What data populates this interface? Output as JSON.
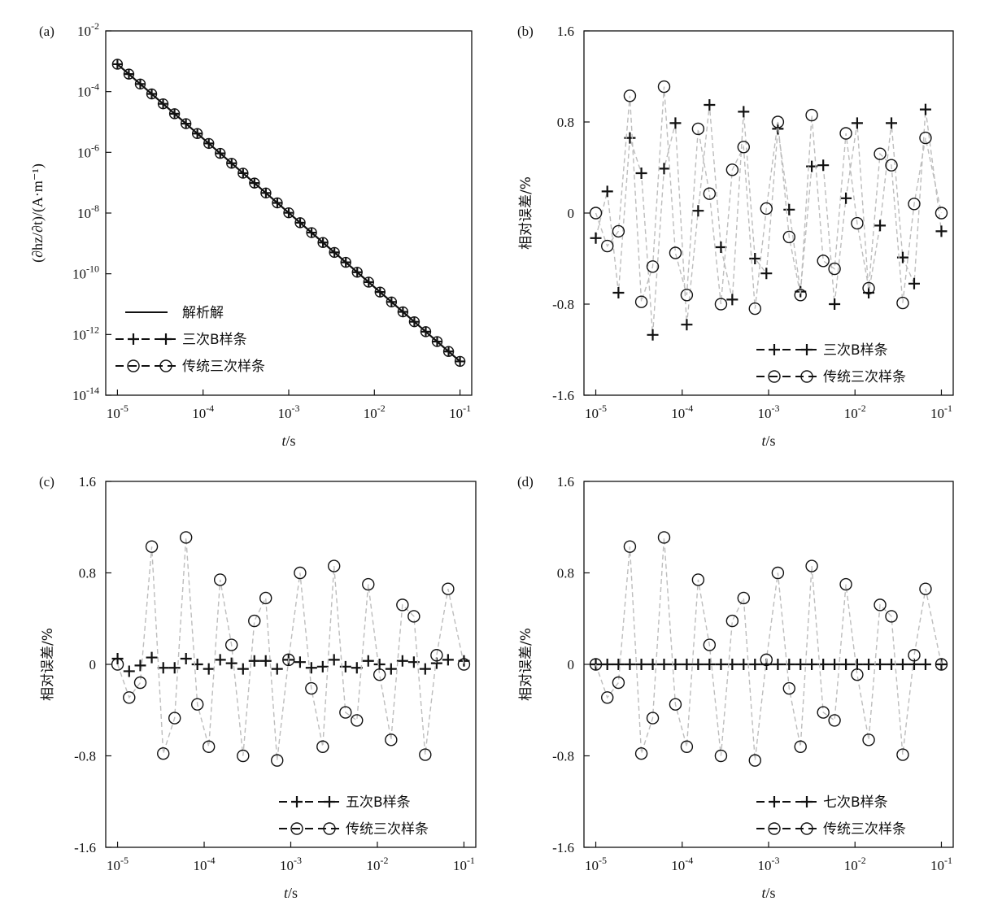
{
  "chart_data": [
    {
      "panel": "(a)",
      "type": "line",
      "xscale": "log",
      "yscale": "log",
      "xlim": [
        1e-05,
        0.1
      ],
      "ylim": [
        1e-14,
        0.01
      ],
      "xlabel_italic": "t",
      "xlabel_unit": "/s",
      "ylabel": "(∂hz/∂t)/(A·m⁻¹)",
      "xticks": [
        "10-5",
        "10-4",
        "10-3",
        "10-2",
        "10-1"
      ],
      "yticks": [
        "10-2",
        "10-4",
        "10-6",
        "10-8",
        "10-10",
        "10-12",
        "10-14"
      ],
      "legend_position": "bottom-left",
      "series": [
        {
          "name": "解析解",
          "style": "solid-line",
          "x_range": [
            1e-05,
            0.1
          ],
          "y_range": [
            0.0008,
            1.3e-13
          ]
        },
        {
          "name": "三次B样条",
          "style": "plus-markers",
          "x_range": [
            1e-05,
            0.1
          ],
          "y_range": [
            0.0008,
            1.3e-13
          ],
          "points": 31
        },
        {
          "name": "传统三次样条",
          "style": "circle-markers",
          "x_range": [
            1e-05,
            0.1
          ],
          "y_range": [
            0.0008,
            1.3e-13
          ],
          "points": 31
        }
      ]
    },
    {
      "panel": "(b)",
      "type": "scatter",
      "xscale": "log",
      "xlim": [
        1e-05,
        0.1
      ],
      "ylim": [
        -1.6,
        1.6
      ],
      "xlabel_italic": "t",
      "xlabel_unit": "/s",
      "ylabel": "相对误差/%",
      "xticks": [
        "10-5",
        "10-4",
        "10-3",
        "10-2",
        "10-1"
      ],
      "yticks": [
        "1.6",
        "0.8",
        "0",
        "-0.8",
        "-1.6"
      ],
      "legend_position": "bottom-right",
      "series": [
        {
          "name": "三次B样条",
          "style": "plus-markers",
          "x": [
            1e-05,
            1.36e-05,
            1.83e-05,
            2.48e-05,
            3.37e-05,
            4.56e-05,
            6.17e-05,
            8.35e-05,
            0.000113,
            0.000153,
            0.000207,
            0.000281,
            0.00038,
            0.000514,
            0.000696,
            0.000943,
            0.00128,
            0.00173,
            0.00234,
            0.00316,
            0.00429,
            0.0058,
            0.00785,
            0.0106,
            0.0144,
            0.0195,
            0.0264,
            0.0357,
            0.0484,
            0.0655,
            0.1
          ],
          "y": [
            -0.22,
            0.19,
            -0.7,
            0.66,
            0.35,
            -1.07,
            0.39,
            0.79,
            -0.98,
            0.02,
            0.95,
            -0.3,
            -0.76,
            0.89,
            -0.4,
            -0.53,
            0.74,
            0.03,
            -0.69,
            0.41,
            0.42,
            -0.8,
            0.13,
            0.79,
            -0.7,
            -0.11,
            0.79,
            -0.39,
            -0.62,
            0.91,
            -0.16
          ]
        },
        {
          "name": "传统三次样条",
          "style": "circle-markers",
          "x": [
            1e-05,
            1.36e-05,
            1.83e-05,
            2.48e-05,
            3.37e-05,
            4.56e-05,
            6.17e-05,
            8.35e-05,
            0.000113,
            0.000153,
            0.000207,
            0.000281,
            0.00038,
            0.000514,
            0.000696,
            0.000943,
            0.00128,
            0.00173,
            0.00234,
            0.00316,
            0.00429,
            0.0058,
            0.00785,
            0.0106,
            0.0144,
            0.0195,
            0.0264,
            0.0357,
            0.0484,
            0.0655,
            0.1
          ],
          "y": [
            0.0,
            -0.29,
            -0.16,
            1.03,
            -0.78,
            -0.47,
            1.11,
            -0.35,
            -0.72,
            0.74,
            0.17,
            -0.8,
            0.38,
            0.58,
            -0.84,
            0.04,
            0.8,
            -0.21,
            -0.72,
            0.86,
            -0.42,
            -0.49,
            0.7,
            -0.09,
            -0.66,
            0.52,
            0.42,
            -0.79,
            0.08,
            0.66,
            0.0
          ]
        }
      ]
    },
    {
      "panel": "(c)",
      "type": "scatter",
      "xscale": "log",
      "xlim": [
        1e-05,
        0.1
      ],
      "ylim": [
        -1.6,
        1.6
      ],
      "xlabel_italic": "t",
      "xlabel_unit": "/s",
      "ylabel": "相对误差/%",
      "xticks": [
        "10-5",
        "10-4",
        "10-3",
        "10-2",
        "10-1"
      ],
      "yticks": [
        "1.6",
        "0.8",
        "0",
        "-0.8",
        "-1.6"
      ],
      "legend_position": "bottom-right",
      "series": [
        {
          "name": "五次B样条",
          "style": "plus-markers",
          "x": [
            1e-05,
            1.36e-05,
            1.83e-05,
            2.48e-05,
            3.37e-05,
            4.56e-05,
            6.17e-05,
            8.35e-05,
            0.000113,
            0.000153,
            0.000207,
            0.000281,
            0.00038,
            0.000514,
            0.000696,
            0.000943,
            0.00128,
            0.00173,
            0.00234,
            0.00316,
            0.00429,
            0.0058,
            0.00785,
            0.0106,
            0.0144,
            0.0195,
            0.0264,
            0.0357,
            0.0484,
            0.0655,
            0.1
          ],
          "y": [
            0.05,
            -0.06,
            -0.01,
            0.06,
            -0.03,
            -0.03,
            0.05,
            0.0,
            -0.04,
            0.04,
            0.01,
            -0.04,
            0.03,
            0.03,
            -0.04,
            0.04,
            0.02,
            -0.03,
            -0.02,
            0.04,
            -0.02,
            -0.03,
            0.03,
            0.0,
            -0.04,
            0.03,
            0.02,
            -0.04,
            0.01,
            0.04,
            0.03
          ]
        },
        {
          "name": "传统三次样条",
          "style": "circle-markers",
          "x": [
            1e-05,
            1.36e-05,
            1.83e-05,
            2.48e-05,
            3.37e-05,
            4.56e-05,
            6.17e-05,
            8.35e-05,
            0.000113,
            0.000153,
            0.000207,
            0.000281,
            0.00038,
            0.000514,
            0.000696,
            0.000943,
            0.00128,
            0.00173,
            0.00234,
            0.00316,
            0.00429,
            0.0058,
            0.00785,
            0.0106,
            0.0144,
            0.0195,
            0.0264,
            0.0357,
            0.0484,
            0.0655,
            0.1
          ],
          "y": [
            0.0,
            -0.29,
            -0.16,
            1.03,
            -0.78,
            -0.47,
            1.11,
            -0.35,
            -0.72,
            0.74,
            0.17,
            -0.8,
            0.38,
            0.58,
            -0.84,
            0.04,
            0.8,
            -0.21,
            -0.72,
            0.86,
            -0.42,
            -0.49,
            0.7,
            -0.09,
            -0.66,
            0.52,
            0.42,
            -0.79,
            0.08,
            0.66,
            0.0
          ]
        }
      ]
    },
    {
      "panel": "(d)",
      "type": "scatter",
      "xscale": "log",
      "xlim": [
        1e-05,
        0.1
      ],
      "ylim": [
        -1.6,
        1.6
      ],
      "xlabel_italic": "t",
      "xlabel_unit": "/s",
      "ylabel": "相对误差/%",
      "xticks": [
        "10-5",
        "10-4",
        "10-3",
        "10-2",
        "10-1"
      ],
      "yticks": [
        "1.6",
        "0.8",
        "0",
        "-0.8",
        "-1.6"
      ],
      "legend_position": "bottom-right",
      "series": [
        {
          "name": "七次B样条",
          "style": "plus-markers",
          "x": [
            1e-05,
            1.36e-05,
            1.83e-05,
            2.48e-05,
            3.37e-05,
            4.56e-05,
            6.17e-05,
            8.35e-05,
            0.000113,
            0.000153,
            0.000207,
            0.000281,
            0.00038,
            0.000514,
            0.000696,
            0.000943,
            0.00128,
            0.00173,
            0.00234,
            0.00316,
            0.00429,
            0.0058,
            0.00785,
            0.0106,
            0.0144,
            0.0195,
            0.0264,
            0.0357,
            0.0484,
            0.0655,
            0.1
          ],
          "y": [
            0.0,
            0.0,
            0.0,
            0.0,
            0.0,
            0.0,
            0.0,
            0.0,
            0.0,
            0.0,
            0.0,
            0.0,
            0.0,
            0.0,
            0.0,
            0.0,
            0.0,
            0.0,
            0.0,
            0.0,
            0.0,
            0.0,
            0.0,
            0.0,
            0.0,
            0.0,
            0.0,
            0.0,
            0.0,
            0.0,
            0.0
          ]
        },
        {
          "name": "传统三次样条",
          "style": "circle-markers",
          "x": [
            1e-05,
            1.36e-05,
            1.83e-05,
            2.48e-05,
            3.37e-05,
            4.56e-05,
            6.17e-05,
            8.35e-05,
            0.000113,
            0.000153,
            0.000207,
            0.000281,
            0.00038,
            0.000514,
            0.000696,
            0.000943,
            0.00128,
            0.00173,
            0.00234,
            0.00316,
            0.00429,
            0.0058,
            0.00785,
            0.0106,
            0.0144,
            0.0195,
            0.0264,
            0.0357,
            0.0484,
            0.0655,
            0.1
          ],
          "y": [
            0.0,
            -0.29,
            -0.16,
            1.03,
            -0.78,
            -0.47,
            1.11,
            -0.35,
            -0.72,
            0.74,
            0.17,
            -0.8,
            0.38,
            0.58,
            -0.84,
            0.04,
            0.8,
            -0.21,
            -0.72,
            0.86,
            -0.42,
            -0.49,
            0.7,
            -0.09,
            -0.66,
            0.52,
            0.42,
            -0.79,
            0.08,
            0.66,
            0.0
          ]
        }
      ]
    }
  ],
  "colors": {
    "axis": "#111111",
    "plus_marker": "#111111",
    "circle_marker": "#111111",
    "dashed_connector": "#bdbdbd",
    "analytic_line": "#111111"
  }
}
